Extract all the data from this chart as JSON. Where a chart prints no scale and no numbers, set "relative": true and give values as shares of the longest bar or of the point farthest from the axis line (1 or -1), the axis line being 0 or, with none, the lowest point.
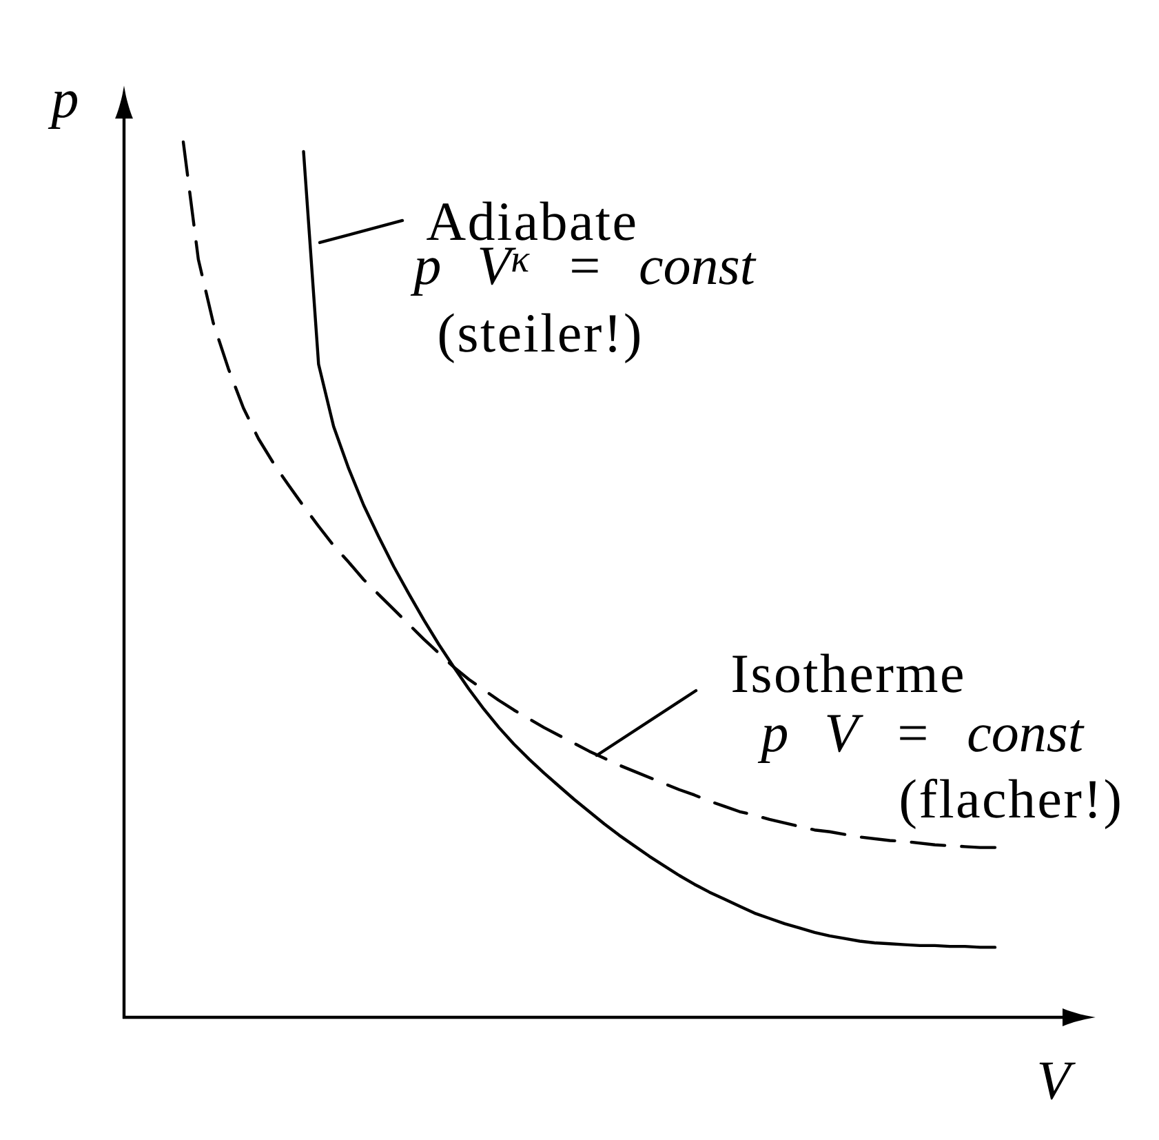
{
  "chart_data": {
    "type": "line",
    "relative": true,
    "xlabel": "V",
    "ylabel": "p",
    "categories": [
      null,
      null,
      null,
      null,
      null,
      null,
      null,
      null,
      null,
      null,
      null,
      null,
      null,
      null,
      null,
      null,
      null,
      null,
      null,
      null,
      null,
      null,
      null,
      null,
      null,
      null,
      null,
      null,
      null,
      null,
      null,
      null,
      null,
      null,
      null,
      null,
      null,
      null,
      null,
      null,
      null,
      null,
      null,
      null,
      null,
      null,
      null,
      null,
      null,
      null,
      null,
      null,
      null,
      null,
      null
    ],
    "series": [
      {
        "name": "Adiabate",
        "color": "#000000",
        "line_style": "solid",
        "values": [
          null,
          null,
          null,
          null,
          null,
          null,
          null,
          null,
          0.989,
          0.746,
          0.675,
          0.627,
          0.585,
          0.549,
          0.515,
          0.484,
          0.454,
          0.426,
          0.4,
          0.375,
          0.352,
          0.331,
          0.312,
          0.295,
          0.279,
          0.264,
          0.249,
          0.235,
          0.221,
          0.208,
          0.196,
          0.184,
          0.173,
          0.162,
          0.152,
          0.143,
          0.135,
          0.127,
          0.119,
          0.113,
          0.107,
          0.102,
          0.097,
          0.093,
          0.09,
          0.087,
          0.085,
          0.084,
          0.083,
          0.082,
          0.082,
          0.081,
          0.081,
          0.08,
          0.08
        ]
      },
      {
        "name": "Isotherme",
        "color": "#000000",
        "line_style": "dashed",
        "values": [
          1.0,
          0.866,
          0.793,
          0.741,
          0.696,
          0.661,
          0.633,
          0.608,
          0.584,
          0.561,
          0.539,
          0.52,
          0.5,
          0.483,
          0.466,
          0.449,
          0.432,
          0.416,
          0.4,
          0.386,
          0.374,
          0.362,
          0.351,
          0.341,
          0.331,
          0.322,
          0.313,
          0.304,
          0.296,
          0.288,
          0.281,
          0.274,
          0.267,
          0.26,
          0.254,
          0.247,
          0.241,
          0.235,
          0.231,
          0.226,
          0.222,
          0.218,
          0.214,
          0.212,
          0.209,
          0.206,
          0.204,
          0.202,
          0.201,
          0.199,
          0.197,
          0.196,
          0.195,
          0.194,
          0.194
        ]
      }
    ],
    "annotations": [
      "p V$^{κ}$ = const",
      "(steiler!)",
      "p V = const",
      "(flacher!)"
    ]
  }
}
